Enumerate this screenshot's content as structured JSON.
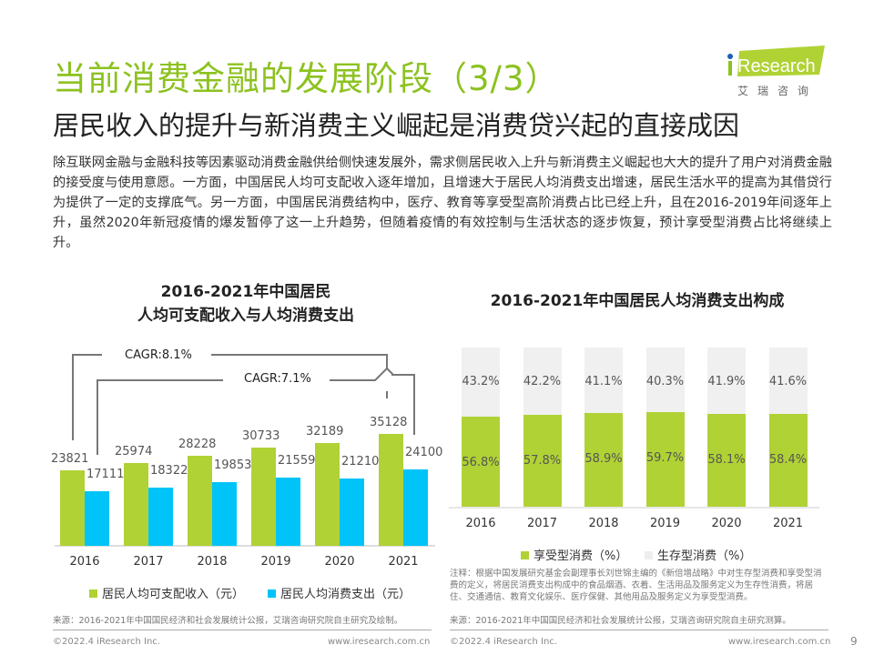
{
  "header": {
    "title": "当前消费金融的发展阶段（3/3）",
    "subtitle": "居民收入的提升与新消费主义崛起是消费贷兴起的直接成因",
    "logo_text": "iResearch",
    "logo_cn": "艾 瑞 咨 询"
  },
  "intro": "除互联网金融与金融科技等因素驱动消费金融供给侧快速发展外，需求侧居民收入上升与新消费主义崛起也大大的提升了用户对消费金融的接受度与使用意愿。一方面，中国居民人均可支配收入逐年增加，且增速大于居民人均消费支出增速，居民生活水平的提高为其借贷行为提供了一定的支撑底气。另一方面，中国居民消费结构中，医疗、教育等享受型高阶消费占比已经上升，且在2016-2019年间逐年上升，虽然2020年新冠疫情的爆发暂停了这一上升趋势，但随着疫情的有效控制与生活状态的逐步恢复，预计享受型消费占比将继续上升。",
  "colors": {
    "green": "#b0d235",
    "blue": "#00c3f8",
    "gray": "#f0f0f0",
    "title": "#8cc21f"
  },
  "chart_data": [
    {
      "type": "bar",
      "title_line1": "2016-2021年中国居民",
      "title_line2": "人均可支配收入与人均消费支出",
      "categories": [
        "2016",
        "2017",
        "2018",
        "2019",
        "2020",
        "2021"
      ],
      "series": [
        {
          "name": "居民人均可支配收入（元）",
          "values": [
            23821,
            25974,
            28228,
            30733,
            32189,
            35128
          ]
        },
        {
          "name": "居民人均消费支出（元）",
          "values": [
            17111,
            18322,
            19853,
            21559,
            21210,
            24100
          ]
        }
      ],
      "annotations": [
        "CAGR:8.1%",
        "CAGR:7.1%"
      ],
      "ylim": [
        0,
        40000
      ]
    },
    {
      "type": "bar",
      "stacked": true,
      "title": "2016-2021年中国居民人均消费支出构成",
      "categories": [
        "2016",
        "2017",
        "2018",
        "2019",
        "2020",
        "2021"
      ],
      "series": [
        {
          "name": "享受型消费（%）",
          "values": [
            56.8,
            57.8,
            58.9,
            59.7,
            58.1,
            58.4
          ],
          "labels": [
            "56.8%",
            "57.8%",
            "58.9%",
            "59.7%",
            "58.1%",
            "58.4%"
          ]
        },
        {
          "name": "生存型消费（%）",
          "values": [
            43.2,
            42.2,
            41.1,
            40.3,
            41.9,
            41.6
          ],
          "labels": [
            "43.2%",
            "42.2%",
            "41.1%",
            "40.3%",
            "41.9%",
            "41.6%"
          ]
        }
      ],
      "ylim": [
        0,
        100
      ]
    }
  ],
  "notes": {
    "left_source": "来源：2016-2021年中国国民经济和社会发展统计公报，艾瑞咨询研究院自主研究及绘制。",
    "right_note": "注释：根据中国发展研究基金会副理事长刘世锦主编的《新倍增战略》中对生存型消费和享受型消费的定义，将居民消费支出构成中的食品烟酒、衣着、生活用品及服务定义为生存性消费，将居住、交通通信、教育文化娱乐、医疗保健、其他用品及服务定义为享受型消费。",
    "right_source": "来源：2016-2021年中国国民经济和社会发展统计公报，艾瑞咨询研究院自主研究测算。"
  },
  "footer": {
    "copyright": "©2022.4 iResearch Inc.",
    "url": "www.iresearch.com.cn",
    "page": "9"
  }
}
